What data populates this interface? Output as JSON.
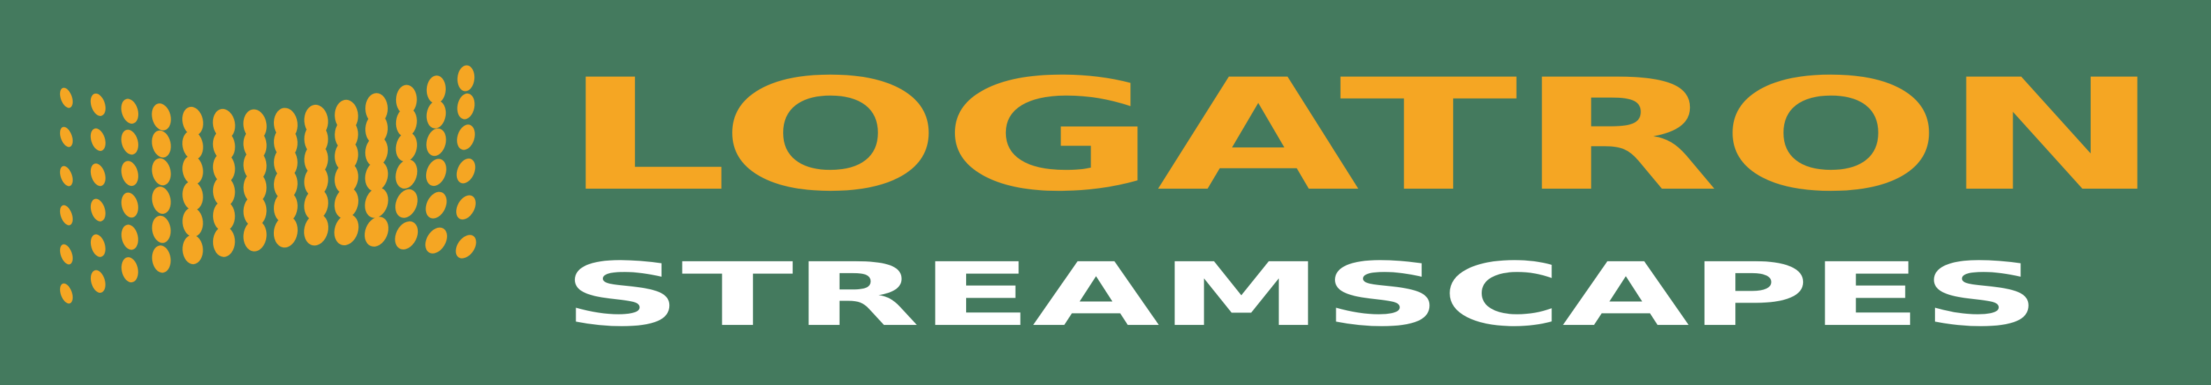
{
  "logo": {
    "name": "LOGATRON",
    "tagline": "STREAMSCAPES"
  },
  "colors": {
    "background": "#447a5e",
    "brand_orange": "#f5a623",
    "tagline_white": "#ffffff"
  },
  "icons": {
    "emblem": "dotted-wave-flag-icon"
  }
}
